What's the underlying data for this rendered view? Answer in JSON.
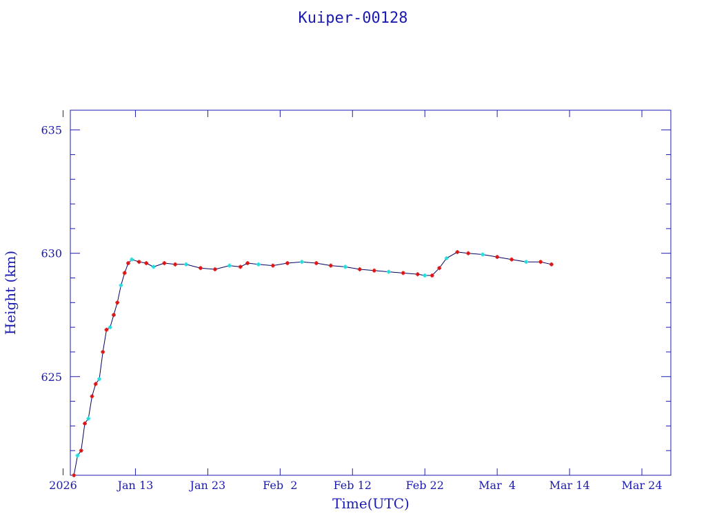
{
  "chart_data": {
    "type": "line",
    "title": "Kuiper-00128",
    "xlabel": "Time(UTC)",
    "ylabel": "Height (km)",
    "xlim": [
      "2026-01-04",
      "2026-03-28"
    ],
    "ylim": [
      621.0,
      635.8
    ],
    "x_tick_labels": [
      "2026",
      "Jan 13",
      "Jan 23",
      "Feb  2",
      "Feb 12",
      "Feb 22",
      "Mar  4",
      "Mar 14",
      "Mar 24"
    ],
    "y_tick_labels": [
      "625",
      "630",
      "635"
    ],
    "grid": false,
    "colors": {
      "axis": "#1a1ab0",
      "line": "#000060",
      "marker_primary": "#dd1111",
      "marker_secondary": "#22dddd"
    },
    "series": [
      {
        "x": [
          "2026-01-04 12:00",
          "2026-01-05 00:00",
          "2026-01-05 12:00",
          "2026-01-06 00:00",
          "2026-01-06 12:00",
          "2026-01-07 00:00",
          "2026-01-07 12:00",
          "2026-01-08 00:00",
          "2026-01-08 12:00",
          "2026-01-09 00:00",
          "2026-01-09 12:00",
          "2026-01-10 00:00",
          "2026-01-10 12:00",
          "2026-01-11 00:00",
          "2026-01-11 12:00",
          "2026-01-12 00:00",
          "2026-01-12 12:00",
          "2026-01-13 12:00",
          "2026-01-14 12:00",
          "2026-01-15 12:00",
          "2026-01-17 00:00",
          "2026-01-18 12:00",
          "2026-01-20 00:00",
          "2026-01-22 00:00",
          "2026-01-24 00:00",
          "2026-01-26 00:00",
          "2026-01-27 12:00",
          "2026-01-28 12:00",
          "2026-01-30 00:00",
          "2026-02-01 00:00",
          "2026-02-03 00:00",
          "2026-02-05 00:00",
          "2026-02-07 00:00",
          "2026-02-09 00:00",
          "2026-02-11 00:00",
          "2026-02-13 00:00",
          "2026-02-15 00:00",
          "2026-02-17 00:00",
          "2026-02-19 00:00",
          "2026-02-21 00:00",
          "2026-02-22 00:00",
          "2026-02-23 00:00",
          "2026-02-24 00:00",
          "2026-02-25 00:00",
          "2026-02-26 12:00",
          "2026-02-28 00:00",
          "2026-03-02 00:00",
          "2026-03-04 00:00",
          "2026-03-06 00:00",
          "2026-03-08 00:00",
          "2026-03-10 00:00",
          "2026-03-11 12:00"
        ],
        "values": [
          621.0,
          621.8,
          622.0,
          623.1,
          623.3,
          624.2,
          624.7,
          624.9,
          626.0,
          626.9,
          627.0,
          627.5,
          628.0,
          628.7,
          629.2,
          629.6,
          629.75,
          629.65,
          629.6,
          629.45,
          629.6,
          629.55,
          629.55,
          629.4,
          629.35,
          629.5,
          629.45,
          629.6,
          629.55,
          629.5,
          629.6,
          629.65,
          629.6,
          629.5,
          629.45,
          629.35,
          629.3,
          629.25,
          629.2,
          629.15,
          629.1,
          629.1,
          629.4,
          629.8,
          630.05,
          630.0,
          629.95,
          629.85,
          629.75,
          629.65,
          629.65,
          629.55
        ]
      }
    ]
  }
}
